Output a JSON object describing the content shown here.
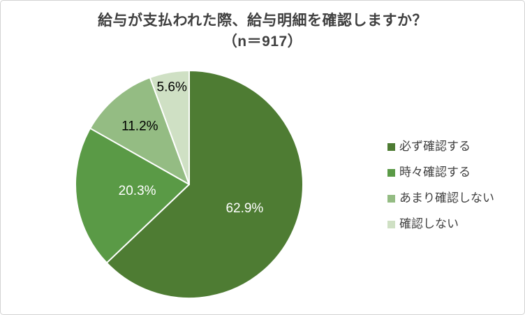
{
  "title": {
    "line1": "給与が支払われた際、給与明細を確認しますか？",
    "line2": "（n＝917）"
  },
  "chart_data": {
    "type": "pie",
    "title": "給与が支払われた際、給与明細を確認しますか？（n＝917）",
    "categories": [
      "必ず確認する",
      "時々確認する",
      "あまり確認しない",
      "確認しない"
    ],
    "values": [
      62.9,
      20.3,
      11.2,
      5.6
    ],
    "labels": [
      "62.9%",
      "20.3%",
      "11.2%",
      "5.6%"
    ],
    "colors": [
      "#4e7c33",
      "#5a9a46",
      "#94bc83",
      "#cfe0c4"
    ],
    "label_colors": [
      "#ffffff",
      "#ffffff",
      "#000000",
      "#000000"
    ],
    "label_radius": [
      0.53,
      0.46,
      0.67,
      0.87
    ],
    "start_angle": 0,
    "direction": "clockwise",
    "legend_position": "right",
    "background": "#ffffff"
  }
}
